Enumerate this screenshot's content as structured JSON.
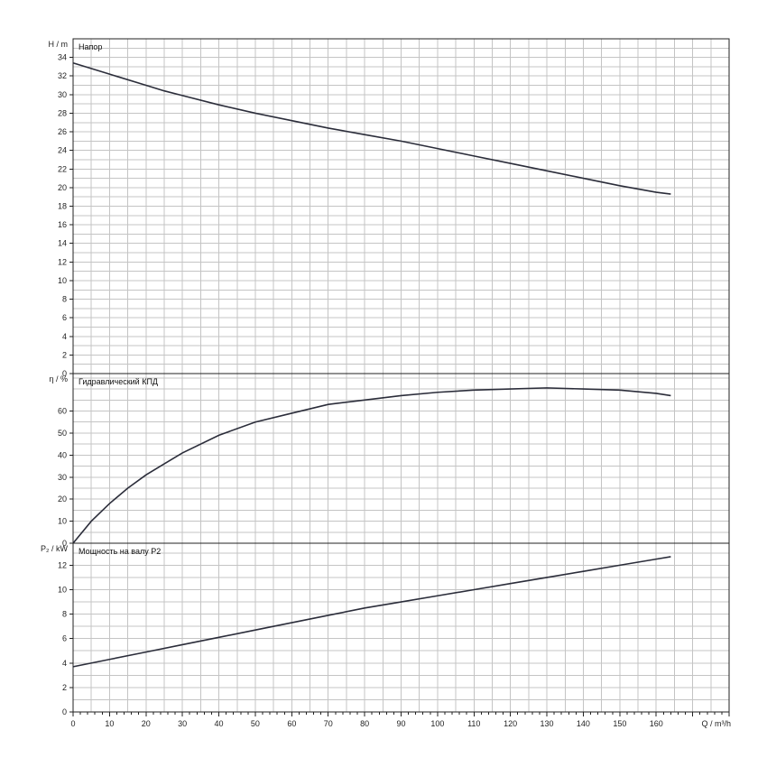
{
  "chart_data": [
    {
      "type": "line",
      "title": "Напор",
      "ylabel": "H / m",
      "xlim": [
        0,
        180
      ],
      "ylim": [
        0,
        36
      ],
      "y_ticks": [
        0,
        2,
        4,
        6,
        8,
        10,
        12,
        14,
        16,
        18,
        20,
        22,
        24,
        26,
        28,
        30,
        32,
        34
      ],
      "grid": true,
      "series": [
        {
          "x": [
            0,
            10,
            20,
            25,
            30,
            40,
            50,
            60,
            70,
            80,
            90,
            100,
            110,
            120,
            130,
            140,
            150,
            160,
            164
          ],
          "y": [
            33.4,
            32.2,
            31.0,
            30.4,
            29.9,
            28.9,
            28.0,
            27.2,
            26.4,
            25.7,
            25.0,
            24.2,
            23.4,
            22.6,
            21.8,
            21.0,
            20.2,
            19.5,
            19.3
          ]
        }
      ]
    },
    {
      "type": "line",
      "title": "Гидравлический КПД",
      "ylabel": "η / %",
      "xlim": [
        0,
        180
      ],
      "ylim": [
        0,
        77
      ],
      "y_ticks": [
        0,
        10,
        20,
        30,
        40,
        50,
        60
      ],
      "grid": true,
      "series": [
        {
          "x": [
            0,
            5,
            10,
            15,
            20,
            25,
            30,
            40,
            50,
            60,
            70,
            80,
            90,
            100,
            110,
            120,
            130,
            140,
            150,
            160,
            164
          ],
          "y": [
            0,
            10,
            18,
            25,
            31,
            36,
            41,
            49,
            55,
            59,
            63,
            65,
            67,
            68.5,
            69.5,
            70,
            70.5,
            70,
            69.5,
            68,
            67
          ]
        }
      ]
    },
    {
      "type": "line",
      "title": "Мощность на валу P2",
      "ylabel": "P₂ / kW",
      "xlabel": "Q / m³/h",
      "xlim": [
        0,
        180
      ],
      "ylim": [
        0,
        13.8
      ],
      "x_ticks": [
        0,
        10,
        20,
        30,
        40,
        50,
        60,
        70,
        80,
        90,
        100,
        110,
        120,
        130,
        140,
        150,
        160
      ],
      "y_ticks": [
        0,
        2,
        4,
        6,
        8,
        10,
        12
      ],
      "grid": true,
      "series": [
        {
          "x": [
            0,
            10,
            20,
            30,
            40,
            50,
            60,
            70,
            80,
            90,
            100,
            110,
            120,
            130,
            140,
            150,
            160,
            164
          ],
          "y": [
            3.7,
            4.3,
            4.9,
            5.5,
            6.1,
            6.7,
            7.3,
            7.9,
            8.5,
            9.0,
            9.5,
            10.0,
            10.5,
            11.0,
            11.5,
            12.0,
            12.5,
            12.7
          ]
        }
      ]
    }
  ]
}
